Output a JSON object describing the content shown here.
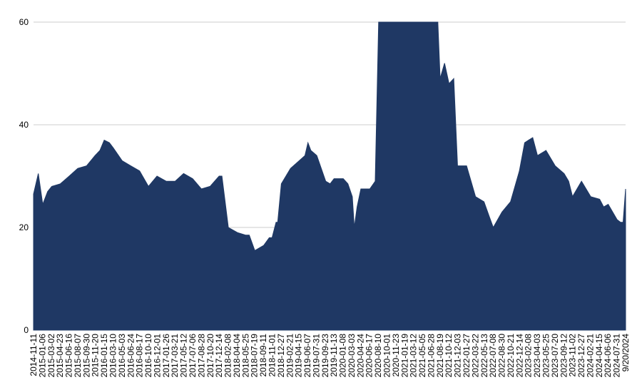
{
  "chart_data": {
    "type": "area",
    "title": "",
    "xlabel": "",
    "ylabel": "",
    "ylim": [
      0,
      60
    ],
    "yticks": [
      0,
      20,
      40,
      60
    ],
    "grid": true,
    "legend": "none",
    "color": "#1f3864",
    "x_tick_labels": [
      "2014-11-11",
      "2015-01-06",
      "2015-03-02",
      "2015-04-23",
      "2015-06-16",
      "2015-08-07",
      "2015-09-30",
      "2015-11-20",
      "2016-01-15",
      "2016-03-10",
      "2016-05-03",
      "2016-06-24",
      "2016-08-17",
      "2016-10-10",
      "2016-12-01",
      "2017-01-26",
      "2017-03-21",
      "2017-05-12",
      "2017-07-06",
      "2017-08-28",
      "2017-10-20",
      "2017-12-14",
      "2018-02-08",
      "2018-04-04",
      "2018-05-25",
      "2018-07-19",
      "2018-09-11",
      "2018-11-01",
      "2018-12-27",
      "2019-02-21",
      "2019-04-15",
      "2019-06-07",
      "2019-07-31",
      "2019-09-23",
      "2019-11-13",
      "2020-01-08",
      "2020-03-03",
      "2020-04-24",
      "2020-06-17",
      "2020-08-10",
      "2020-10-01",
      "2020-11-23",
      "2021-01-19",
      "2021-03-12",
      "2021-05-05",
      "2021-06-28",
      "2021-08-19",
      "2021-10-12",
      "2021-12-03",
      "2022-01-27",
      "2022-03-22",
      "2022-05-13",
      "2022-07-08",
      "2022-08-30",
      "2022-10-21",
      "2022-12-14",
      "2023-02-08",
      "2023-04-03",
      "2023-05-25",
      "2023-07-20",
      "2023-09-12",
      "2023-11-02",
      "2023-12-27",
      "2024-02-21",
      "2024-04-15",
      "2024-06-06",
      "2024-07-31",
      "9/20/2024"
    ],
    "x": [
      "2014-11-11",
      "2014-12-10",
      "2015-01-06",
      "2015-02-05",
      "2015-03-02",
      "2015-04-23",
      "2015-06-16",
      "2015-08-07",
      "2015-09-30",
      "2015-11-20",
      "2015-12-20",
      "2016-01-15",
      "2016-02-15",
      "2016-03-10",
      "2016-05-03",
      "2016-06-24",
      "2016-08-17",
      "2016-10-10",
      "2016-12-01",
      "2017-01-26",
      "2017-03-21",
      "2017-05-12",
      "2017-07-06",
      "2017-08-28",
      "2017-10-20",
      "2017-12-14",
      "2017-12-31",
      "2018-02-08",
      "2018-04-04",
      "2018-05-25",
      "2018-06-15",
      "2018-07-19",
      "2018-09-11",
      "2018-10-15",
      "2018-11-01",
      "2018-11-25",
      "2018-12-05",
      "2018-12-27",
      "2019-02-21",
      "2019-04-15",
      "2019-05-20",
      "2019-06-07",
      "2019-06-25",
      "2019-07-31",
      "2019-09-23",
      "2019-10-20",
      "2019-11-13",
      "2020-01-08",
      "2020-02-05",
      "2020-03-03",
      "2020-03-15",
      "2020-04-01",
      "2020-04-24",
      "2020-06-17",
      "2020-07-20",
      "2020-08-10",
      "2020-10-01",
      "2020-11-23",
      "2021-01-19",
      "2021-03-12",
      "2021-05-05",
      "2021-06-28",
      "2021-07-15",
      "2021-08-05",
      "2021-08-19",
      "2021-09-15",
      "2021-10-12",
      "2021-11-10",
      "2021-12-03",
      "2022-01-27",
      "2022-03-22",
      "2022-05-13",
      "2022-06-15",
      "2022-07-08",
      "2022-08-30",
      "2022-10-21",
      "2022-12-14",
      "2023-01-15",
      "2023-02-08",
      "2023-03-05",
      "2023-04-03",
      "2023-05-25",
      "2023-07-20",
      "2023-09-12",
      "2023-10-10",
      "2023-11-02",
      "2023-12-27",
      "2024-02-21",
      "2024-04-15",
      "2024-05-10",
      "2024-06-06",
      "2024-07-31",
      "2024-08-20",
      "2024-09-05",
      "9/20/2024"
    ],
    "values": [
      26.5,
      30.5,
      24.5,
      27,
      28,
      28.5,
      30,
      31.5,
      32,
      34,
      35,
      37,
      36.5,
      35.5,
      33,
      32,
      31,
      28,
      30,
      29,
      29,
      30.5,
      29.5,
      27.5,
      28,
      30,
      30,
      20,
      19,
      18.5,
      18.5,
      15.5,
      16.5,
      18,
      18,
      21,
      21,
      28.5,
      31.5,
      33,
      34,
      36.5,
      35,
      34,
      29,
      28.5,
      29.5,
      29.5,
      28.5,
      26,
      20,
      24,
      27.5,
      27.5,
      29,
      60,
      60,
      60,
      60,
      60,
      60,
      60,
      60,
      60,
      49,
      52,
      48,
      49,
      32,
      32,
      26,
      25,
      22,
      20,
      23,
      25,
      31,
      36.5,
      37,
      37.5,
      34,
      35,
      32,
      30.5,
      29,
      26,
      29,
      26,
      25.5,
      24,
      24.5,
      21.5,
      21,
      21,
      27.5
    ]
  }
}
